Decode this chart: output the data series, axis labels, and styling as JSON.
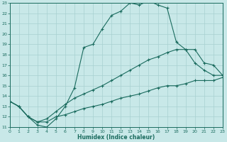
{
  "xlabel": "Humidex (Indice chaleur)",
  "xlim": [
    0,
    23
  ],
  "ylim": [
    11,
    23
  ],
  "xticks": [
    0,
    1,
    2,
    3,
    4,
    5,
    6,
    7,
    8,
    9,
    10,
    11,
    12,
    13,
    14,
    15,
    16,
    17,
    18,
    19,
    20,
    21,
    22,
    23
  ],
  "yticks": [
    11,
    12,
    13,
    14,
    15,
    16,
    17,
    18,
    19,
    20,
    21,
    22,
    23
  ],
  "bg_color": "#c8e8e8",
  "line_color": "#1a6b5e",
  "grid_color": "#a8d0d0",
  "line1_y": [
    13.5,
    13.0,
    12.0,
    11.2,
    11.0,
    11.8,
    13.0,
    14.8,
    18.7,
    19.0,
    20.5,
    21.8,
    22.2,
    23.0,
    22.8,
    23.2,
    22.8,
    22.5,
    19.2,
    18.5,
    17.2,
    16.5,
    16.0,
    16.0
  ],
  "line2_y": [
    13.5,
    13.0,
    12.0,
    11.5,
    11.8,
    12.5,
    13.2,
    13.8,
    14.2,
    14.6,
    15.0,
    15.5,
    16.0,
    16.5,
    17.0,
    17.5,
    17.8,
    18.2,
    18.5,
    18.5,
    18.5,
    17.2,
    17.0,
    16.0
  ],
  "line3_y": [
    13.5,
    13.0,
    12.0,
    11.5,
    11.5,
    12.0,
    12.2,
    12.5,
    12.8,
    13.0,
    13.2,
    13.5,
    13.8,
    14.0,
    14.2,
    14.5,
    14.8,
    15.0,
    15.0,
    15.2,
    15.5,
    15.5,
    15.5,
    15.8
  ]
}
